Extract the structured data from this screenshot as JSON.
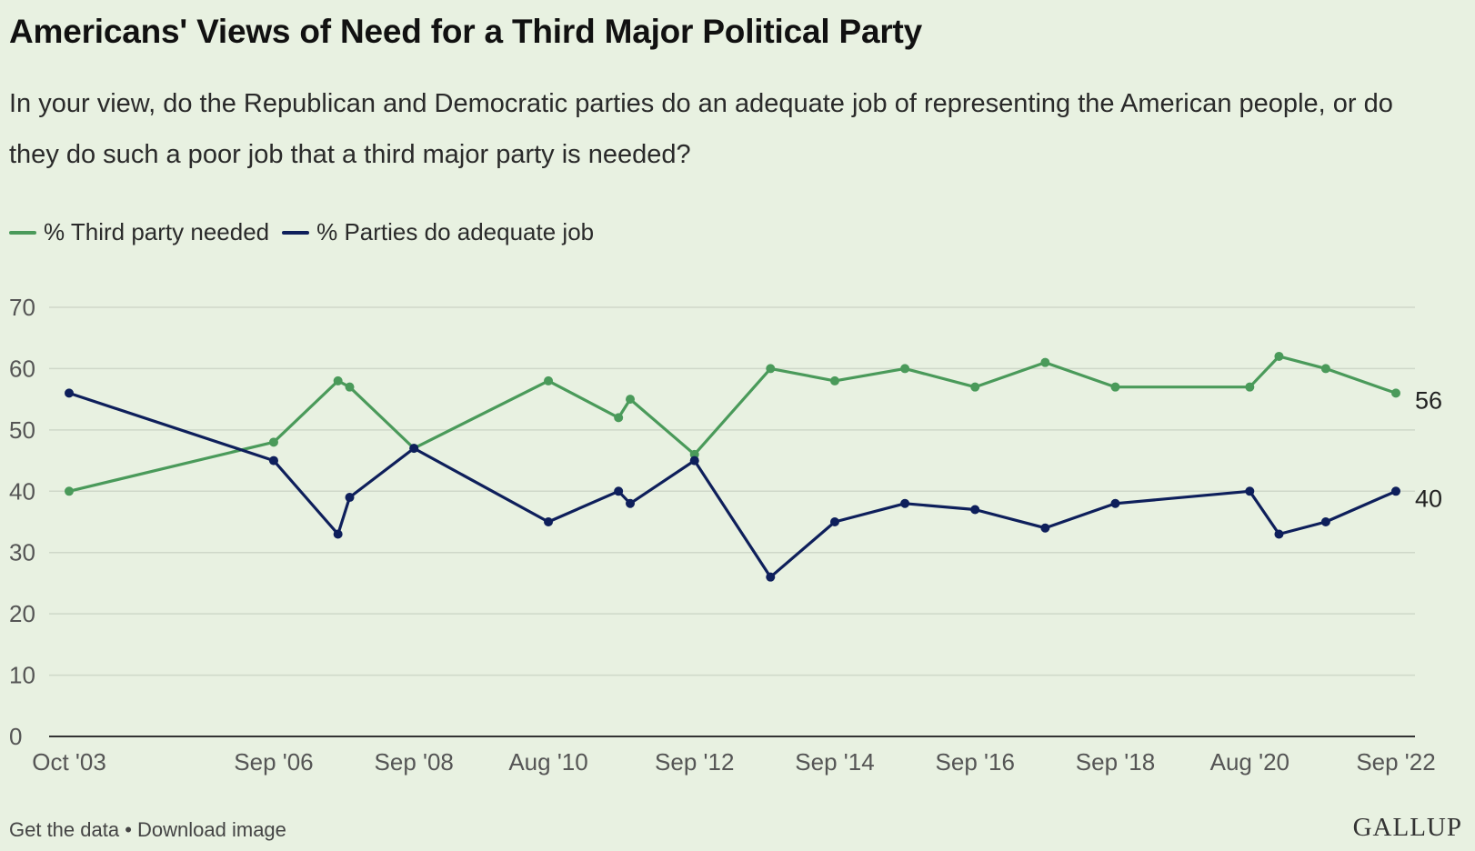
{
  "header": {
    "title": "Americans' Views of Need for a Third Major Political Party",
    "subtitle": "In your view, do the Republican and Democratic parties do an adequate job of representing the American people, or do they do such a poor job that a third major party is needed?"
  },
  "legend": {
    "items": [
      {
        "label": "% Third party needed",
        "color": "#4a9a5a"
      },
      {
        "label": "% Parties do adequate job",
        "color": "#0e1f5b"
      }
    ]
  },
  "footer": {
    "get_data": "Get the data",
    "separator": " • ",
    "download": "Download image",
    "logo": "GALLUP"
  },
  "chart_data": {
    "type": "line",
    "x_tick_labels": [
      "Oct '03",
      "Sep '06",
      "Sep '08",
      "Aug '10",
      "Sep '12",
      "Sep '14",
      "Sep '16",
      "Sep '18",
      "Aug '20",
      "Sep '22"
    ],
    "x_tick_dates": [
      "2003-10",
      "2006-09",
      "2008-09",
      "2010-08",
      "2012-09",
      "2014-09",
      "2016-09",
      "2018-09",
      "2020-08",
      "2022-09"
    ],
    "x": [
      "2003-10",
      "2006-09",
      "2007-08",
      "2007-10",
      "2008-09",
      "2010-08",
      "2011-08",
      "2011-10",
      "2012-09",
      "2013-10",
      "2014-09",
      "2015-09",
      "2016-09",
      "2017-09",
      "2018-09",
      "2020-08",
      "2021-01",
      "2021-09",
      "2022-09"
    ],
    "series": [
      {
        "name": "% Third party needed",
        "color": "#4a9a5a",
        "values": [
          40,
          48,
          58,
          57,
          47,
          58,
          52,
          55,
          46,
          60,
          58,
          60,
          57,
          61,
          57,
          57,
          62,
          60,
          56
        ]
      },
      {
        "name": "% Parties do adequate job",
        "color": "#0e1f5b",
        "values": [
          56,
          45,
          33,
          39,
          47,
          35,
          40,
          38,
          45,
          26,
          35,
          38,
          37,
          34,
          38,
          40,
          33,
          35,
          40
        ]
      }
    ],
    "end_labels": [
      "56",
      "40"
    ],
    "y_ticks": [
      0,
      10,
      20,
      30,
      40,
      50,
      60,
      70
    ],
    "ylim": [
      0,
      70
    ],
    "grid": true,
    "legend_position": "top-left"
  }
}
